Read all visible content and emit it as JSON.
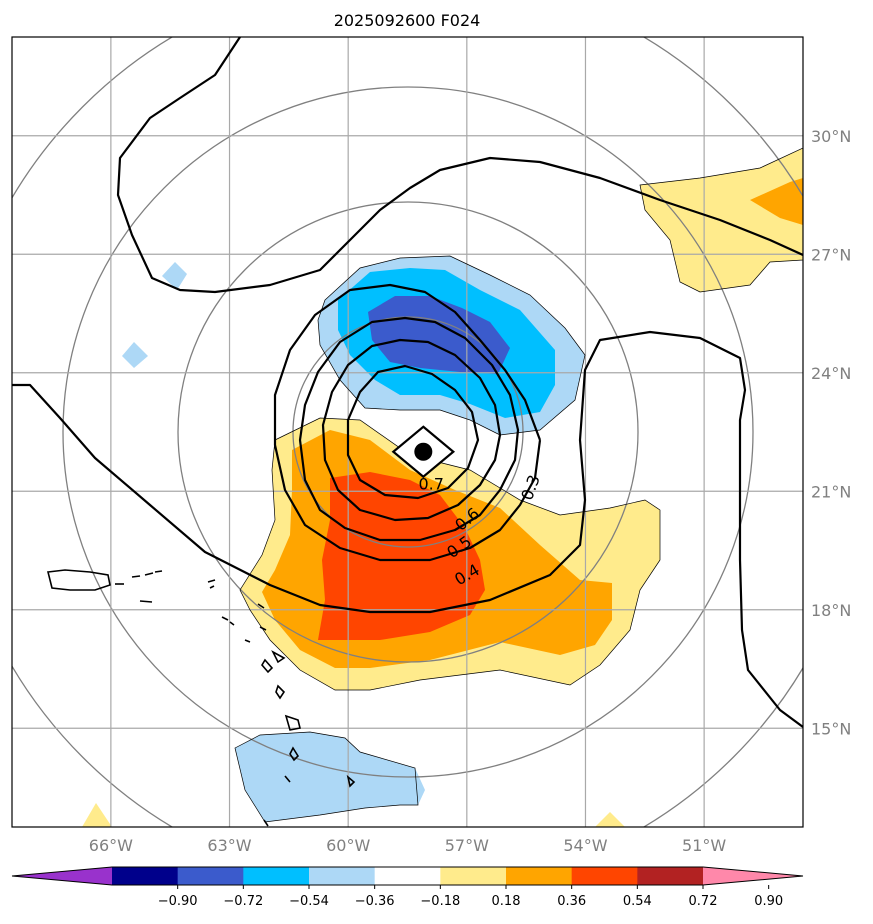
{
  "title": "2025092600 F024",
  "map": {
    "projection": "lat-lon",
    "lon_range": [
      -68.5,
      -48.5
    ],
    "lat_range": [
      12.5,
      32.5
    ],
    "lon_ticks": [
      {
        "value": -66,
        "label": "66°W"
      },
      {
        "value": -63,
        "label": "63°W"
      },
      {
        "value": -60,
        "label": "60°W"
      },
      {
        "value": -57,
        "label": "57°W"
      },
      {
        "value": -54,
        "label": "54°W"
      },
      {
        "value": -51,
        "label": "51°W"
      }
    ],
    "lat_ticks": [
      {
        "value": 30,
        "label": "30°N"
      },
      {
        "value": 27,
        "label": "27°N"
      },
      {
        "value": 24,
        "label": "24°N"
      },
      {
        "value": 21,
        "label": "21°N"
      },
      {
        "value": 18,
        "label": "18°N"
      },
      {
        "value": 15,
        "label": "15°N"
      }
    ],
    "storm_center": {
      "lon": -58.1,
      "lat": 22.0,
      "marker": "filled-circle-in-diamond"
    },
    "range_rings": "gray concentric circles around storm center",
    "contour_labels": [
      {
        "text": "0.7",
        "lon": -57.9,
        "lat": 21.2,
        "angle": 0
      },
      {
        "text": "0.6",
        "lon": -57.0,
        "lat": 20.3,
        "angle": -40
      },
      {
        "text": "0.5",
        "lon": -57.2,
        "lat": 19.6,
        "angle": -35
      },
      {
        "text": "0.4",
        "lon": -57.0,
        "lat": 18.9,
        "angle": -30
      },
      {
        "text": "0.3",
        "lon": -55.4,
        "lat": 21.1,
        "angle": -70
      }
    ]
  },
  "colorbar": {
    "labels": [
      "−0.90",
      "−0.72",
      "−0.54",
      "−0.36",
      "−0.18",
      "0.18",
      "0.36",
      "0.54",
      "0.72",
      "0.90"
    ],
    "colors": [
      "#9932cc",
      "#00008b",
      "#3b5bcc",
      "#00bfff",
      "#add8f6",
      "#ffffff",
      "#ffeb8c",
      "#ffa500",
      "#ff4500",
      "#b22222",
      "#ff88aa"
    ]
  },
  "colors": {
    "neg_strong": "#3b5bcc",
    "neg_mid": "#00bfff",
    "neg_weak": "#add8f6",
    "pos_weak": "#ffeb8c",
    "pos_mid": "#ffa500",
    "pos_strong": "#ff4500",
    "grid": "#a9a9a9",
    "rings": "#808080"
  }
}
